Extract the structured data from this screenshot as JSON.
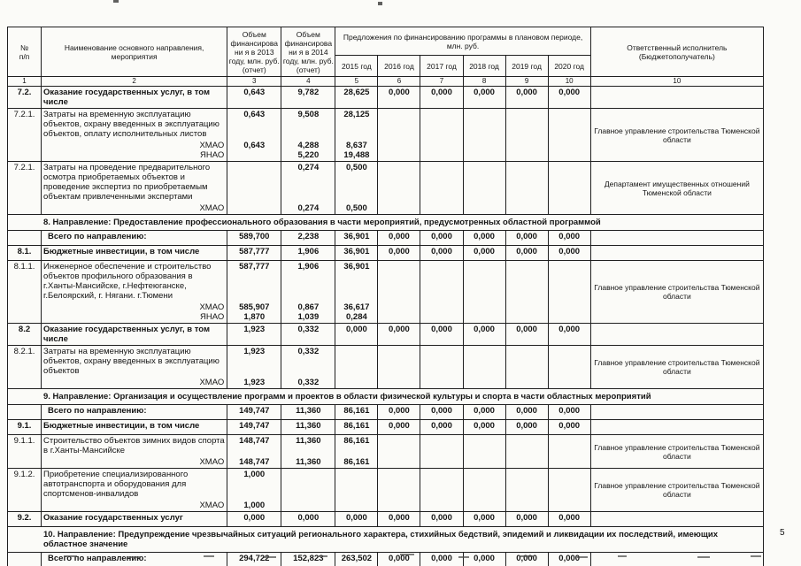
{
  "page": {
    "number": "5"
  },
  "table": {
    "header": {
      "num_top": "№",
      "num_bottom": "п/п",
      "name": "Наименование основного направления, мероприятия",
      "vol2013": "Объем финансировани я в 2013 году, млн. руб. (отчет)",
      "vol2014": "Объем финансировани я в 2014 году, млн. руб. (отчет)",
      "plan_group": "Предложения по финансированию программы в плановом периоде,  млн. руб.",
      "years": [
        "2015 год",
        "2016 год",
        "2017 год",
        "2018 год",
        "2019 год",
        "2020 год"
      ],
      "executor": "Ответственный исполнитель (Бюджетополучатель)",
      "index": [
        "1",
        "2",
        "3",
        "4",
        "5",
        "6",
        "7",
        "8",
        "9",
        "10",
        "10"
      ]
    },
    "rows": [
      {
        "style": "bold",
        "num": "7.2.",
        "name": "Оказание государственных услуг, в том числе",
        "vals": [
          "0,643",
          "9,782",
          "28,625",
          "0,000",
          "0,000",
          "0,000",
          "0,000",
          "0,000"
        ],
        "executor": ""
      },
      {
        "style": "normal",
        "num": "7.2.1.",
        "name": "Затраты на временную эксплуатацию объектов, охрану введенных в эксплуатацию объектов, оплату исполнительных листов",
        "vals": [
          "0,643",
          "9,508",
          "28,125",
          "",
          "",
          "",
          "",
          ""
        ],
        "subs": [
          {
            "label": "ХМАО",
            "vals": [
              "0,643",
              "4,288",
              "8,637",
              "",
              "",
              "",
              "",
              ""
            ]
          },
          {
            "label": "ЯНАО",
            "vals": [
              "",
              "5,220",
              "19,488",
              "",
              "",
              "",
              "",
              ""
            ]
          }
        ],
        "executor": "Главное управление строительства Тюменской области"
      },
      {
        "style": "normal",
        "num": "7.2.1.",
        "name": "Затраты на проведение предварительного осмотра приобретаемых объектов и проведение экспертиз по приобретаемым объектам привлеченными экспертами",
        "vals": [
          "",
          "0,274",
          "0,500",
          "",
          "",
          "",
          "",
          ""
        ],
        "subs": [
          {
            "label": "ХМАО",
            "vals": [
              "",
              "0,274",
              "0,500",
              "",
              "",
              "",
              "",
              ""
            ]
          }
        ],
        "executor": "Департамент имущественных отношений Тюменской области"
      },
      {
        "style": "section",
        "text": "8. Направление: Предоставление профессионального образования в части мероприятий, предусмотренных областной программой"
      },
      {
        "style": "total",
        "num": "",
        "name": "Всего по направлению:",
        "vals": [
          "589,700",
          "2,238",
          "36,901",
          "0,000",
          "0,000",
          "0,000",
          "0,000",
          "0,000"
        ],
        "executor": ""
      },
      {
        "style": "bold",
        "num": "8.1.",
        "name": "Бюджетные инвестиции, в том числе",
        "vals": [
          "587,777",
          "1,906",
          "36,901",
          "0,000",
          "0,000",
          "0,000",
          "0,000",
          "0,000"
        ],
        "executor": ""
      },
      {
        "style": "normal",
        "num": "8.1.1.",
        "name": "Инженерное обеспечение и строительство объектов профильного образования в г.Ханты-Мансийске, г.Нефтеюганске, г.Белоярский, г. Нягани. г.Тюмени",
        "vals": [
          "587,777",
          "1,906",
          "36,901",
          "",
          "",
          "",
          "",
          ""
        ],
        "subs": [
          {
            "label": "ХМАО",
            "vals": [
              "585,907",
              "0,867",
              "36,617",
              "",
              "",
              "",
              "",
              ""
            ]
          },
          {
            "label": "ЯНАО",
            "vals": [
              "1,870",
              "1,039",
              "0,284",
              "",
              "",
              "",
              "",
              ""
            ]
          }
        ],
        "executor": "Главное управление строительства Тюменской области"
      },
      {
        "style": "bold",
        "num": "8.2",
        "name": "Оказание государственных услуг, в том числе",
        "vals": [
          "1,923",
          "0,332",
          "0,000",
          "0,000",
          "0,000",
          "0,000",
          "0,000",
          "0,000"
        ],
        "executor": ""
      },
      {
        "style": "normal",
        "num": "8.2.1.",
        "name": "Затраты на временную эксплуатацию объектов, охрану введенных в эксплуатацию объектов",
        "vals": [
          "1,923",
          "0,332",
          "",
          "",
          "",
          "",
          "",
          ""
        ],
        "subs": [
          {
            "label": "ХМАО",
            "vals": [
              "1,923",
              "0,332",
              "",
              "",
              "",
              "",
              "",
              ""
            ]
          }
        ],
        "executor": "Главное управление строительства Тюменской области"
      },
      {
        "style": "section",
        "text": "9. Направление: Организация и осуществление программ и проектов в области физической культуры и спорта в части областных мероприятий"
      },
      {
        "style": "total",
        "num": "",
        "name": "Всего по направлению:",
        "vals": [
          "149,747",
          "11,360",
          "86,161",
          "0,000",
          "0,000",
          "0,000",
          "0,000",
          "0,000"
        ],
        "executor": ""
      },
      {
        "style": "bold",
        "num": "9.1.",
        "name": "Бюджетные инвестиции, в том числе",
        "vals": [
          "149,747",
          "11,360",
          "86,161",
          "0,000",
          "0,000",
          "0,000",
          "0,000",
          "0,000"
        ],
        "executor": ""
      },
      {
        "style": "normal",
        "num": "9.1.1.",
        "name": "Строительство объектов зимних видов спорта в г.Ханты-Мансийске",
        "vals": [
          "148,747",
          "11,360",
          "86,161",
          "",
          "",
          "",
          "",
          ""
        ],
        "subs": [
          {
            "label": "ХМАО",
            "vals": [
              "148,747",
              "11,360",
              "86,161",
              "",
              "",
              "",
              "",
              ""
            ]
          }
        ],
        "executor": "Главное управление строительства Тюменской области"
      },
      {
        "style": "normal",
        "num": "9.1.2.",
        "name": "Приобретение специализированного автотранспорта и оборудования для спортсменов-инвалидов",
        "vals": [
          "1,000",
          "",
          "",
          "",
          "",
          "",
          "",
          ""
        ],
        "subs": [
          {
            "label": "ХМАО",
            "vals": [
              "1,000",
              "",
              "",
              "",
              "",
              "",
              "",
              ""
            ]
          }
        ],
        "executor": "Главное управление строительства Тюменской области"
      },
      {
        "style": "bold",
        "num": "9.2.",
        "name": "Оказание государственных услуг",
        "vals": [
          "0,000",
          "0,000",
          "0,000",
          "0,000",
          "0,000",
          "0,000",
          "0,000",
          "0,000"
        ],
        "executor": ""
      },
      {
        "style": "section",
        "text": "10. Направление: Предупреждение чрезвычайных ситуаций регионального характера, стихийных бедствий, эпидемий и ликвидации их последствий, имеющих областное значение"
      },
      {
        "style": "total",
        "num": "",
        "name": "Всего по направлению:",
        "vals": [
          "294,722",
          "152,823",
          "263,502",
          "0,000",
          "0,000",
          "0,000",
          "0,000",
          "0,000"
        ],
        "executor": ""
      }
    ]
  }
}
